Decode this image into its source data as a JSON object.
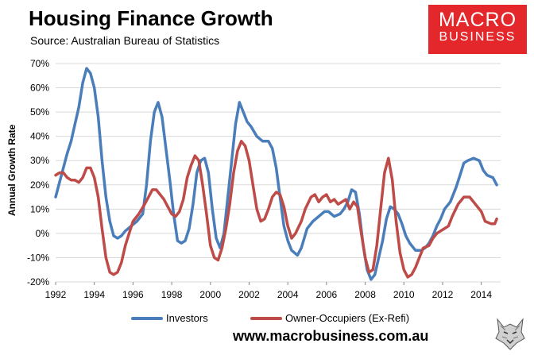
{
  "header": {
    "title": "Housing Finance Growth",
    "source": "Source: Australian Bureau of Statistics"
  },
  "logo": {
    "line1": "MACRO",
    "line2": "BUSINESS"
  },
  "footer": {
    "website": "www.macrobusiness.com.au"
  },
  "colors": {
    "investors": "#4a7ebb",
    "owner_occupiers": "#be4b48",
    "plot_bg": "#ffffff",
    "grid": "#d9d9d9",
    "logo_bg": "#e4272a"
  },
  "icons": {
    "wolf": "wolf-head-icon"
  },
  "chart_data": {
    "type": "line",
    "title": "Housing Finance Growth",
    "ylabel": "Annual Growth Rate",
    "xlabel": "",
    "xlim": [
      1992,
      2015
    ],
    "ylim": [
      -20,
      70
    ],
    "grid": "horizontal",
    "legend_position": "bottom",
    "y_ticks": [
      "70%",
      "60%",
      "50%",
      "40%",
      "30%",
      "20%",
      "10%",
      "0%",
      "-10%",
      "-20%"
    ],
    "x_ticks": [
      "1992",
      "1994",
      "1996",
      "1998",
      "2000",
      "2002",
      "2004",
      "2006",
      "2008",
      "2010",
      "2012",
      "2014"
    ],
    "series": [
      {
        "name": "Investors",
        "color": "#4a7ebb",
        "points": [
          [
            1992.0,
            15
          ],
          [
            1992.3,
            24
          ],
          [
            1992.6,
            33
          ],
          [
            1992.8,
            38
          ],
          [
            1993.0,
            45
          ],
          [
            1993.2,
            52
          ],
          [
            1993.4,
            62
          ],
          [
            1993.6,
            68
          ],
          [
            1993.8,
            66
          ],
          [
            1994.0,
            60
          ],
          [
            1994.2,
            48
          ],
          [
            1994.4,
            30
          ],
          [
            1994.6,
            15
          ],
          [
            1994.8,
            5
          ],
          [
            1995.0,
            -1
          ],
          [
            1995.2,
            -2
          ],
          [
            1995.4,
            -1
          ],
          [
            1995.6,
            1
          ],
          [
            1995.9,
            3
          ],
          [
            1996.2,
            5
          ],
          [
            1996.5,
            8
          ],
          [
            1996.7,
            20
          ],
          [
            1996.9,
            38
          ],
          [
            1997.1,
            50
          ],
          [
            1997.3,
            54
          ],
          [
            1997.5,
            48
          ],
          [
            1997.7,
            35
          ],
          [
            1997.9,
            22
          ],
          [
            1998.1,
            8
          ],
          [
            1998.3,
            -3
          ],
          [
            1998.5,
            -4
          ],
          [
            1998.7,
            -3
          ],
          [
            1998.9,
            2
          ],
          [
            1999.1,
            12
          ],
          [
            1999.3,
            25
          ],
          [
            1999.5,
            30
          ],
          [
            1999.7,
            31
          ],
          [
            1999.9,
            25
          ],
          [
            2000.1,
            10
          ],
          [
            2000.3,
            -2
          ],
          [
            2000.5,
            -6
          ],
          [
            2000.7,
            0
          ],
          [
            2000.9,
            15
          ],
          [
            2001.1,
            30
          ],
          [
            2001.3,
            45
          ],
          [
            2001.5,
            54
          ],
          [
            2001.7,
            50
          ],
          [
            2001.9,
            46
          ],
          [
            2002.1,
            44
          ],
          [
            2002.4,
            40
          ],
          [
            2002.7,
            38
          ],
          [
            2003.0,
            38
          ],
          [
            2003.2,
            35
          ],
          [
            2003.4,
            27
          ],
          [
            2003.6,
            15
          ],
          [
            2003.8,
            3
          ],
          [
            2004.0,
            -3
          ],
          [
            2004.2,
            -7
          ],
          [
            2004.5,
            -9
          ],
          [
            2004.7,
            -6
          ],
          [
            2005.0,
            2
          ],
          [
            2005.3,
            5
          ],
          [
            2005.6,
            7
          ],
          [
            2005.9,
            9
          ],
          [
            2006.1,
            9
          ],
          [
            2006.4,
            7
          ],
          [
            2006.7,
            8
          ],
          [
            2006.9,
            10
          ],
          [
            2007.1,
            13
          ],
          [
            2007.3,
            18
          ],
          [
            2007.5,
            17
          ],
          [
            2007.7,
            8
          ],
          [
            2007.9,
            -5
          ],
          [
            2008.1,
            -15
          ],
          [
            2008.3,
            -19
          ],
          [
            2008.5,
            -17
          ],
          [
            2008.7,
            -10
          ],
          [
            2008.9,
            -3
          ],
          [
            2009.1,
            6
          ],
          [
            2009.3,
            11
          ],
          [
            2009.5,
            10
          ],
          [
            2009.7,
            8
          ],
          [
            2009.9,
            4
          ],
          [
            2010.1,
            -1
          ],
          [
            2010.3,
            -4
          ],
          [
            2010.6,
            -7
          ],
          [
            2010.9,
            -7
          ],
          [
            2011.1,
            -6
          ],
          [
            2011.3,
            -4
          ],
          [
            2011.5,
            -1
          ],
          [
            2011.7,
            3
          ],
          [
            2011.9,
            6
          ],
          [
            2012.1,
            10
          ],
          [
            2012.4,
            13
          ],
          [
            2012.7,
            19
          ],
          [
            2012.9,
            24
          ],
          [
            2013.1,
            29
          ],
          [
            2013.3,
            30
          ],
          [
            2013.6,
            31
          ],
          [
            2013.9,
            30
          ],
          [
            2014.1,
            26
          ],
          [
            2014.3,
            24
          ],
          [
            2014.6,
            23
          ],
          [
            2014.8,
            20
          ]
        ]
      },
      {
        "name": "Owner-Occupiers (Ex-Refi)",
        "color": "#be4b48",
        "points": [
          [
            1992.0,
            24
          ],
          [
            1992.2,
            25
          ],
          [
            1992.4,
            25
          ],
          [
            1992.6,
            23
          ],
          [
            1992.8,
            22
          ],
          [
            1993.0,
            22
          ],
          [
            1993.2,
            21
          ],
          [
            1993.4,
            23
          ],
          [
            1993.6,
            27
          ],
          [
            1993.8,
            27
          ],
          [
            1994.0,
            23
          ],
          [
            1994.2,
            15
          ],
          [
            1994.4,
            2
          ],
          [
            1994.6,
            -10
          ],
          [
            1994.8,
            -16
          ],
          [
            1995.0,
            -17
          ],
          [
            1995.2,
            -16
          ],
          [
            1995.4,
            -12
          ],
          [
            1995.6,
            -5
          ],
          [
            1995.8,
            0
          ],
          [
            1996.0,
            5
          ],
          [
            1996.3,
            8
          ],
          [
            1996.6,
            12
          ],
          [
            1996.8,
            15
          ],
          [
            1997.0,
            18
          ],
          [
            1997.2,
            18
          ],
          [
            1997.4,
            16
          ],
          [
            1997.6,
            14
          ],
          [
            1997.8,
            11
          ],
          [
            1998.0,
            8
          ],
          [
            1998.2,
            7
          ],
          [
            1998.4,
            9
          ],
          [
            1998.6,
            14
          ],
          [
            1998.8,
            23
          ],
          [
            1999.0,
            28
          ],
          [
            1999.2,
            32
          ],
          [
            1999.4,
            30
          ],
          [
            1999.6,
            20
          ],
          [
            1999.8,
            8
          ],
          [
            2000.0,
            -5
          ],
          [
            2000.2,
            -10
          ],
          [
            2000.4,
            -11
          ],
          [
            2000.6,
            -6
          ],
          [
            2000.8,
            2
          ],
          [
            2001.0,
            12
          ],
          [
            2001.2,
            25
          ],
          [
            2001.4,
            34
          ],
          [
            2001.6,
            38
          ],
          [
            2001.8,
            36
          ],
          [
            2002.0,
            30
          ],
          [
            2002.2,
            20
          ],
          [
            2002.4,
            10
          ],
          [
            2002.6,
            5
          ],
          [
            2002.8,
            6
          ],
          [
            2003.0,
            10
          ],
          [
            2003.2,
            15
          ],
          [
            2003.4,
            17
          ],
          [
            2003.6,
            16
          ],
          [
            2003.8,
            11
          ],
          [
            2004.0,
            3
          ],
          [
            2004.2,
            -2
          ],
          [
            2004.4,
            0
          ],
          [
            2004.7,
            5
          ],
          [
            2004.9,
            10
          ],
          [
            2005.2,
            15
          ],
          [
            2005.4,
            16
          ],
          [
            2005.6,
            13
          ],
          [
            2005.8,
            15
          ],
          [
            2006.0,
            16
          ],
          [
            2006.2,
            13
          ],
          [
            2006.4,
            14
          ],
          [
            2006.6,
            12
          ],
          [
            2006.8,
            13
          ],
          [
            2007.0,
            14
          ],
          [
            2007.2,
            10
          ],
          [
            2007.4,
            13
          ],
          [
            2007.6,
            11
          ],
          [
            2007.8,
            0
          ],
          [
            2008.0,
            -10
          ],
          [
            2008.2,
            -16
          ],
          [
            2008.4,
            -15
          ],
          [
            2008.6,
            -5
          ],
          [
            2008.8,
            10
          ],
          [
            2009.0,
            25
          ],
          [
            2009.2,
            31
          ],
          [
            2009.4,
            22
          ],
          [
            2009.6,
            5
          ],
          [
            2009.8,
            -8
          ],
          [
            2010.0,
            -15
          ],
          [
            2010.2,
            -18
          ],
          [
            2010.4,
            -17
          ],
          [
            2010.6,
            -14
          ],
          [
            2010.8,
            -10
          ],
          [
            2011.0,
            -6
          ],
          [
            2011.3,
            -5
          ],
          [
            2011.5,
            -2
          ],
          [
            2011.7,
            0
          ],
          [
            2011.9,
            1
          ],
          [
            2012.1,
            2
          ],
          [
            2012.3,
            3
          ],
          [
            2012.5,
            7
          ],
          [
            2012.8,
            12
          ],
          [
            2013.1,
            15
          ],
          [
            2013.4,
            15
          ],
          [
            2013.7,
            12
          ],
          [
            2014.0,
            9
          ],
          [
            2014.2,
            5
          ],
          [
            2014.5,
            4
          ],
          [
            2014.7,
            4
          ],
          [
            2014.8,
            6
          ]
        ]
      }
    ]
  }
}
